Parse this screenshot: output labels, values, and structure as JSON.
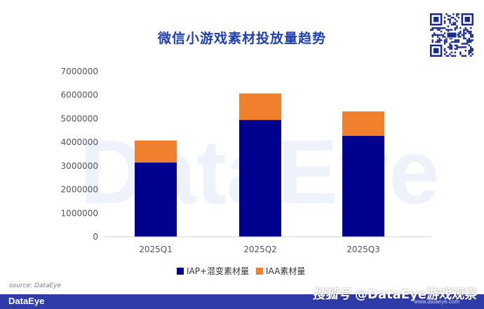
{
  "chart_data": {
    "type": "bar",
    "stacked": true,
    "title": "微信小游戏素材投放量趋势",
    "categories": [
      "2025Q1",
      "2025Q2",
      "2025Q3"
    ],
    "series": [
      {
        "name": "IAP+混变素材量",
        "color": "#00008f",
        "values": [
          3150000,
          4950000,
          4280000
        ]
      },
      {
        "name": "IAA素材量",
        "color": "#f07f2e",
        "values": [
          930000,
          1120000,
          1030000
        ]
      }
    ],
    "yticks": [
      "0",
      "1000000",
      "2000000",
      "3000000",
      "4000000",
      "5000000",
      "6000000",
      "7000000"
    ],
    "ylim": [
      0,
      7000000
    ],
    "grid": false,
    "legend_position": "bottom"
  },
  "source": "source: DataEye",
  "footer": {
    "brand": "DataEye",
    "site": "www.dataeye.com",
    "watermark_logo": "搜狐号",
    "watermark_text": "@DataEye游戏观察"
  },
  "background_watermark": "DataEye"
}
